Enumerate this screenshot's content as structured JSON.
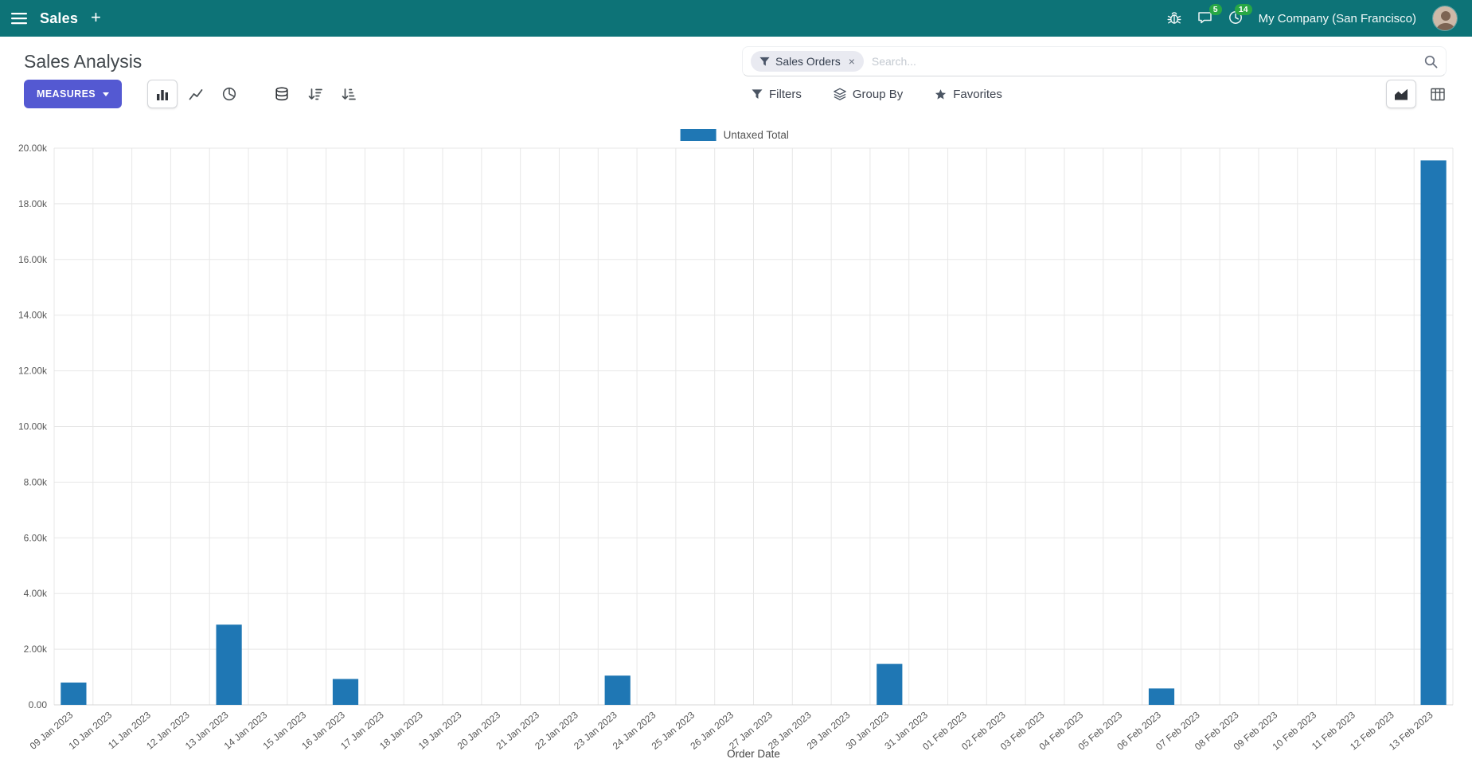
{
  "navbar": {
    "app_name": "Sales",
    "plus": "+",
    "messages_badge": "5",
    "activities_badge": "14",
    "company": "My Company (San Francisco)"
  },
  "control_panel": {
    "title": "Sales Analysis",
    "measures_label": "MEASURES",
    "filters_label": "Filters",
    "group_by_label": "Group By",
    "favorites_label": "Favorites",
    "search": {
      "facet_label": "Sales Orders",
      "remove": "×",
      "placeholder": "Search..."
    }
  },
  "chart_data": {
    "type": "bar",
    "legend": "Untaxed Total",
    "legend_position": "top",
    "xlabel": "Order Date",
    "ylabel": "",
    "ylim": [
      0,
      20000
    ],
    "y_tick_step": 2000,
    "y_tick_labels": [
      "0.00",
      "2.00k",
      "4.00k",
      "6.00k",
      "8.00k",
      "10.00k",
      "12.00k",
      "14.00k",
      "16.00k",
      "18.00k",
      "20.00k"
    ],
    "grid": true,
    "categories": [
      "09 Jan 2023",
      "10 Jan 2023",
      "11 Jan 2023",
      "12 Jan 2023",
      "13 Jan 2023",
      "14 Jan 2023",
      "15 Jan 2023",
      "16 Jan 2023",
      "17 Jan 2023",
      "18 Jan 2023",
      "19 Jan 2023",
      "20 Jan 2023",
      "21 Jan 2023",
      "22 Jan 2023",
      "23 Jan 2023",
      "24 Jan 2023",
      "25 Jan 2023",
      "26 Jan 2023",
      "27 Jan 2023",
      "28 Jan 2023",
      "29 Jan 2023",
      "30 Jan 2023",
      "31 Jan 2023",
      "01 Feb 2023",
      "02 Feb 2023",
      "03 Feb 2023",
      "04 Feb 2023",
      "05 Feb 2023",
      "06 Feb 2023",
      "07 Feb 2023",
      "08 Feb 2023",
      "09 Feb 2023",
      "10 Feb 2023",
      "11 Feb 2023",
      "12 Feb 2023",
      "13 Feb 2023"
    ],
    "series": [
      {
        "name": "Untaxed Total",
        "values": [
          800,
          0,
          0,
          0,
          2880,
          0,
          0,
          930,
          0,
          0,
          0,
          0,
          0,
          0,
          1050,
          0,
          0,
          0,
          0,
          0,
          0,
          1470,
          0,
          0,
          0,
          0,
          0,
          0,
          590,
          0,
          0,
          0,
          0,
          0,
          0,
          19560
        ]
      }
    ]
  },
  "colors": {
    "navbar_bg": "#0d7377",
    "primary_button": "#5459d2",
    "bar": "#1f77b4",
    "badge_green": "#28a745",
    "grid_line": "#e7e7e7"
  }
}
